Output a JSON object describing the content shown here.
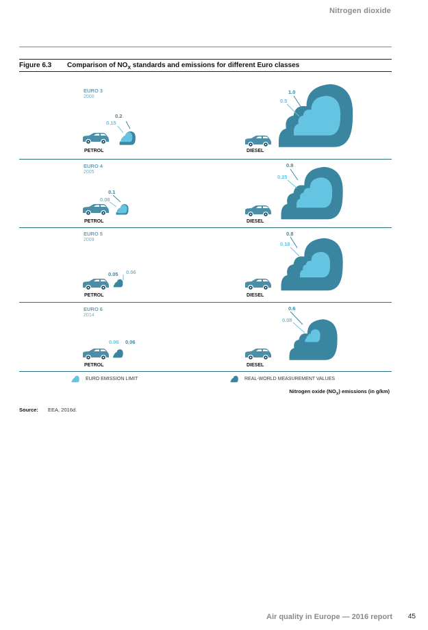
{
  "header": {
    "section": "Nitrogen dioxide"
  },
  "figure": {
    "number": "Figure 6.3",
    "title_pre": "Comparison of NO",
    "title_sub": "X",
    "title_post": " standards and emissions for different Euro classes"
  },
  "colors": {
    "limit": "#66c4e3",
    "real": "#3a86a0",
    "car": "#4a8ea8",
    "rule": "#2f6f86"
  },
  "rows": [
    {
      "euro": "EURO 3",
      "year": "2000",
      "petrol": {
        "label": "PETROL",
        "real": "0.2",
        "limit": "0.15"
      },
      "diesel": {
        "label": "DIESEL",
        "real": "1.0",
        "limit": "0.5"
      }
    },
    {
      "euro": "EURO 4",
      "year": "2005",
      "petrol": {
        "label": "PETROL",
        "real": "0.1",
        "limit": "0.08"
      },
      "diesel": {
        "label": "DIESEL",
        "real": "0.8",
        "limit": "0.25"
      }
    },
    {
      "euro": "EURO 5",
      "year": "2009",
      "petrol": {
        "label": "PETROL",
        "real": "0.05",
        "limit": "0.06"
      },
      "diesel": {
        "label": "DIESEL",
        "real": "0.8",
        "limit": "0.18"
      }
    },
    {
      "euro": "EURO 6",
      "year": "2014",
      "petrol": {
        "label": "PETROL",
        "real": "0.06",
        "limit": "0.06"
      },
      "diesel": {
        "label": "DIESEL",
        "real": "0.6",
        "limit": "0.08"
      }
    }
  ],
  "legend": {
    "limit": "EURO EMISSION LIMIT",
    "real": "REAL-WORLD MEASUREMENT VALUES"
  },
  "axis_note_pre": "Nitrogen oxide (NO",
  "axis_note_sub": "X",
  "axis_note_post": ") emissions (in g/km)",
  "source": {
    "label": "Source:",
    "text": "EEA, 2016d."
  },
  "footer": {
    "title": "Air quality in Europe — 2016 report",
    "page": "45"
  }
}
